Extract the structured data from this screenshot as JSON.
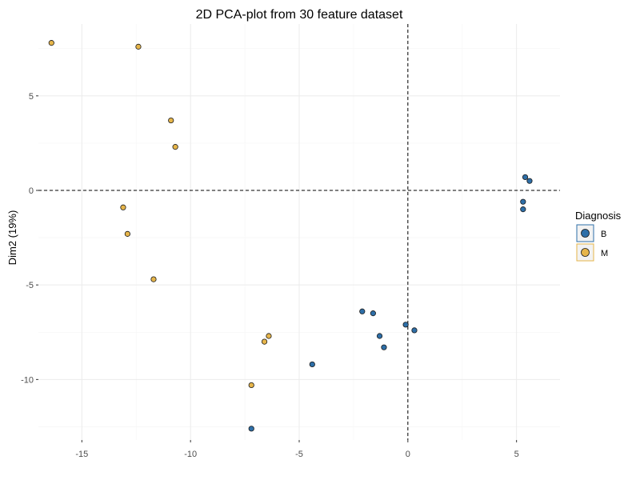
{
  "chart_data": {
    "type": "scatter",
    "title": "2D PCA-plot from 30 feature dataset",
    "xlabel": "",
    "ylabel": "Dim2 (19%)",
    "xlim": [
      -17,
      7
    ],
    "ylim": [
      -13.2,
      8.8
    ],
    "x_ticks": [
      -15,
      -10,
      -5,
      0,
      5
    ],
    "y_ticks": [
      -10,
      -5,
      0,
      5
    ],
    "x_tick_labels": [
      "-15",
      "-10",
      "-5",
      "0",
      "5"
    ],
    "y_tick_labels": [
      "-10",
      "-5",
      "0",
      "5"
    ],
    "grid": true,
    "reference_lines": {
      "x": 0,
      "y": 0,
      "style": "dashed"
    },
    "legend": {
      "title": "Diagnosis",
      "position": "right"
    },
    "series": [
      {
        "name": "B",
        "color": "#2e6fa8",
        "points": [
          [
            5.4,
            0.7
          ],
          [
            5.6,
            0.5
          ],
          [
            5.3,
            -0.6
          ],
          [
            5.3,
            -1.0
          ],
          [
            -2.1,
            -6.4
          ],
          [
            -1.6,
            -6.5
          ],
          [
            -1.3,
            -7.7
          ],
          [
            -1.1,
            -8.3
          ],
          [
            -0.1,
            -7.1
          ],
          [
            0.3,
            -7.4
          ],
          [
            -4.4,
            -9.2
          ],
          [
            -7.2,
            -12.6
          ]
        ]
      },
      {
        "name": "M",
        "color": "#e6b54a",
        "points": [
          [
            -16.4,
            7.8
          ],
          [
            -12.4,
            7.6
          ],
          [
            -10.9,
            3.7
          ],
          [
            -10.7,
            2.3
          ],
          [
            -13.1,
            -0.9
          ],
          [
            -12.9,
            -2.3
          ],
          [
            -11.7,
            -4.7
          ],
          [
            -6.4,
            -7.7
          ],
          [
            -6.6,
            -8.0
          ],
          [
            -7.2,
            -10.3
          ]
        ]
      }
    ]
  }
}
